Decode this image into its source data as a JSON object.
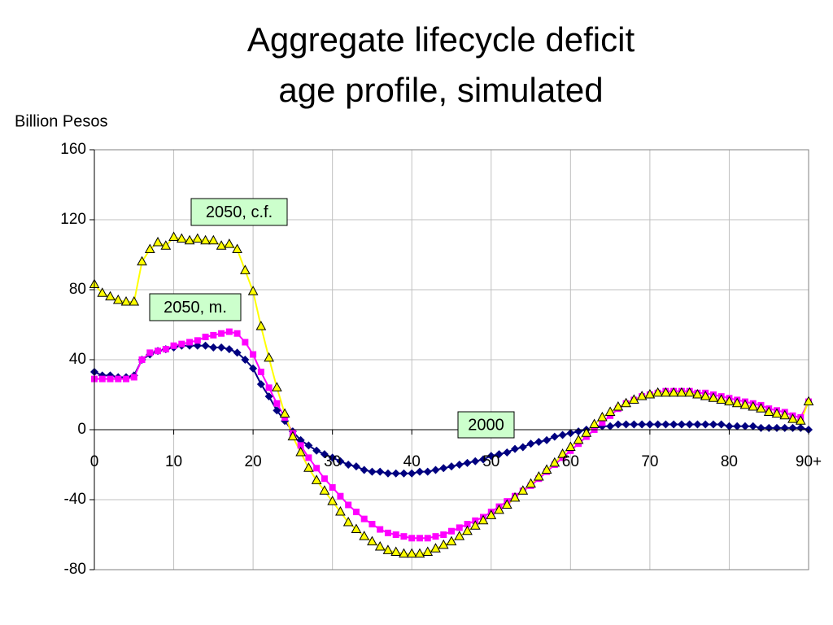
{
  "chart_data": {
    "type": "line",
    "title": [
      "Aggregate lifecycle deficit",
      "age profile, simulated"
    ],
    "y_label": "Billion Pesos",
    "x": [
      0,
      1,
      2,
      3,
      4,
      5,
      6,
      7,
      8,
      9,
      10,
      11,
      12,
      13,
      14,
      15,
      16,
      17,
      18,
      19,
      20,
      21,
      22,
      23,
      24,
      25,
      26,
      27,
      28,
      29,
      30,
      31,
      32,
      33,
      34,
      35,
      36,
      37,
      38,
      39,
      40,
      41,
      42,
      43,
      44,
      45,
      46,
      47,
      48,
      49,
      50,
      51,
      52,
      53,
      54,
      55,
      56,
      57,
      58,
      59,
      60,
      61,
      62,
      63,
      64,
      65,
      66,
      67,
      68,
      69,
      70,
      71,
      72,
      73,
      74,
      75,
      76,
      77,
      78,
      79,
      80,
      81,
      82,
      83,
      84,
      85,
      86,
      87,
      88,
      89,
      90
    ],
    "series": [
      {
        "name": "2000",
        "color": "#000080",
        "marker": "diamond",
        "values": [
          33,
          31,
          31,
          30,
          30,
          31,
          40,
          43,
          45,
          46,
          47,
          48,
          48,
          48,
          48,
          47,
          47,
          46,
          44,
          40,
          35,
          26,
          19,
          11,
          5,
          -1,
          -6,
          -9,
          -12,
          -14,
          -16,
          -18,
          -20,
          -21,
          -23,
          -24,
          -24,
          -25,
          -25,
          -25,
          -25,
          -24,
          -24,
          -23,
          -22,
          -21,
          -20,
          -19,
          -18,
          -17,
          -15,
          -14,
          -13,
          -11,
          -10,
          -8,
          -7,
          -6,
          -4,
          -3,
          -2,
          -1,
          0,
          1,
          2,
          2,
          3,
          3,
          3,
          3,
          3,
          3,
          3,
          3,
          3,
          3,
          3,
          3,
          3,
          3,
          2,
          2,
          2,
          2,
          1,
          1,
          1,
          1,
          1,
          1,
          0
        ]
      },
      {
        "name": "2050, m.",
        "color": "#ff00ff",
        "marker": "square",
        "values": [
          29,
          29,
          29,
          29,
          29,
          30,
          40,
          44,
          45,
          46,
          48,
          49,
          50,
          51,
          53,
          54,
          55,
          56,
          55,
          50,
          43,
          33,
          24,
          15,
          7,
          -2,
          -9,
          -16,
          -22,
          -28,
          -33,
          -38,
          -43,
          -47,
          -51,
          -54,
          -57,
          -59,
          -60,
          -61,
          -62,
          -62,
          -62,
          -61,
          -60,
          -58,
          -56,
          -54,
          -52,
          -50,
          -47,
          -44,
          -41,
          -38,
          -35,
          -32,
          -28,
          -24,
          -20,
          -16,
          -12,
          -8,
          -4,
          0,
          4,
          8,
          12,
          15,
          17,
          19,
          20,
          21,
          22,
          22,
          22,
          22,
          21,
          21,
          20,
          19,
          18,
          17,
          16,
          15,
          14,
          12,
          11,
          10,
          8,
          7,
          16
        ]
      },
      {
        "name": "2050, c.f.",
        "color": "#ffff00",
        "marker": "triangle",
        "values": [
          83,
          78,
          76,
          74,
          73,
          73,
          96,
          103,
          107,
          105,
          110,
          109,
          108,
          109,
          108,
          108,
          105,
          106,
          103,
          91,
          79,
          59,
          41,
          24,
          9,
          -4,
          -13,
          -22,
          -29,
          -35,
          -41,
          -47,
          -53,
          -57,
          -61,
          -64,
          -67,
          -69,
          -70,
          -71,
          -71,
          -71,
          -70,
          -68,
          -66,
          -64,
          -61,
          -58,
          -55,
          -52,
          -49,
          -46,
          -43,
          -39,
          -35,
          -31,
          -27,
          -23,
          -19,
          -14,
          -10,
          -6,
          -2,
          3,
          7,
          10,
          13,
          15,
          17,
          19,
          20,
          21,
          21,
          21,
          21,
          21,
          20,
          19,
          18,
          17,
          16,
          15,
          14,
          13,
          12,
          10,
          9,
          8,
          6,
          5,
          16
        ]
      }
    ],
    "xlim": [
      0,
      90
    ],
    "xticks": [
      0,
      10,
      20,
      30,
      40,
      50,
      60,
      70,
      80,
      {
        "value": 90,
        "label": "90+"
      }
    ],
    "ylim": [
      -80,
      160
    ],
    "yticks": [
      -80,
      -40,
      0,
      40,
      80,
      120,
      160
    ],
    "grid": true,
    "annotation_color": "#ccffcc"
  }
}
